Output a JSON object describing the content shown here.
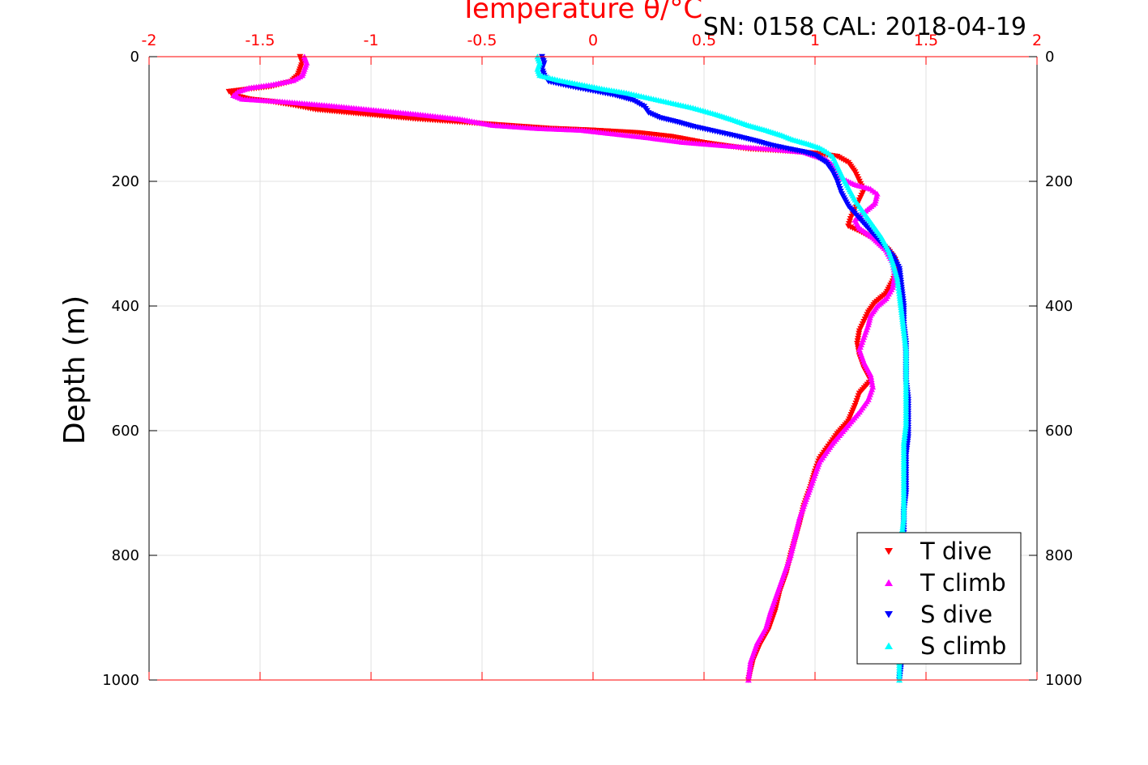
{
  "chart_data": {
    "type": "scatter",
    "title": "Temperature θ/°C",
    "annotation": "SN: 0158  CAL: 2018-04-19",
    "xlabel": "Temperature θ/°C",
    "ylabel": "Depth (m)",
    "xlim": [
      -2,
      2
    ],
    "ylim": [
      0,
      1000
    ],
    "y_reversed": true,
    "x_axis_location": "top",
    "x_ticks": [
      "-2",
      "-1.5",
      "-1",
      "-0.5",
      "0",
      "0.5",
      "1",
      "1.5",
      "2"
    ],
    "y_ticks": [
      "0",
      "200",
      "400",
      "600",
      "800",
      "1000"
    ],
    "grid": true,
    "legend_placement": "bottom-right",
    "colors": {
      "axis": "#ff0000",
      "grid": "#e0e0e0",
      "frame": "#000000"
    },
    "series": [
      {
        "name": "T dive",
        "color": "#ff0000",
        "marker": "triangle-down",
        "points": [
          [
            -1.32,
            0
          ],
          [
            -1.31,
            10
          ],
          [
            -1.32,
            20
          ],
          [
            -1.33,
            30
          ],
          [
            -1.36,
            40
          ],
          [
            -1.45,
            48
          ],
          [
            -1.55,
            52
          ],
          [
            -1.64,
            56
          ],
          [
            -1.62,
            62
          ],
          [
            -1.55,
            68
          ],
          [
            -1.45,
            72
          ],
          [
            -1.35,
            78
          ],
          [
            -1.25,
            85
          ],
          [
            -1.1,
            90
          ],
          [
            -0.95,
            95
          ],
          [
            -0.8,
            100
          ],
          [
            -0.6,
            105
          ],
          [
            -0.4,
            110
          ],
          [
            -0.2,
            115
          ],
          [
            0.0,
            118
          ],
          [
            0.2,
            122
          ],
          [
            0.35,
            128
          ],
          [
            0.5,
            138
          ],
          [
            0.7,
            148
          ],
          [
            0.9,
            152
          ],
          [
            1.0,
            155
          ],
          [
            1.1,
            160
          ],
          [
            1.15,
            170
          ],
          [
            1.18,
            185
          ],
          [
            1.2,
            200
          ],
          [
            1.22,
            215
          ],
          [
            1.2,
            230
          ],
          [
            1.18,
            245
          ],
          [
            1.16,
            260
          ],
          [
            1.15,
            272
          ],
          [
            1.2,
            280
          ],
          [
            1.28,
            295
          ],
          [
            1.33,
            310
          ],
          [
            1.36,
            325
          ],
          [
            1.37,
            340
          ],
          [
            1.35,
            360
          ],
          [
            1.32,
            380
          ],
          [
            1.27,
            395
          ],
          [
            1.24,
            410
          ],
          [
            1.22,
            425
          ],
          [
            1.2,
            440
          ],
          [
            1.19,
            460
          ],
          [
            1.2,
            480
          ],
          [
            1.22,
            500
          ],
          [
            1.25,
            520
          ],
          [
            1.2,
            540
          ],
          [
            1.18,
            560
          ],
          [
            1.15,
            585
          ],
          [
            1.1,
            605
          ],
          [
            1.06,
            625
          ],
          [
            1.02,
            645
          ],
          [
            1.0,
            665
          ],
          [
            0.98,
            690
          ],
          [
            0.95,
            720
          ],
          [
            0.93,
            750
          ],
          [
            0.91,
            775
          ],
          [
            0.89,
            800
          ],
          [
            0.87,
            830
          ],
          [
            0.84,
            860
          ],
          [
            0.82,
            890
          ],
          [
            0.79,
            920
          ],
          [
            0.75,
            945
          ],
          [
            0.72,
            970
          ],
          [
            0.7,
            1000
          ]
        ]
      },
      {
        "name": "T climb",
        "color": "#ff00ff",
        "marker": "triangle-up",
        "points": [
          [
            -1.3,
            0
          ],
          [
            -1.29,
            10
          ],
          [
            -1.3,
            20
          ],
          [
            -1.31,
            30
          ],
          [
            -1.35,
            38
          ],
          [
            -1.45,
            45
          ],
          [
            -1.55,
            50
          ],
          [
            -1.6,
            56
          ],
          [
            -1.62,
            62
          ],
          [
            -1.58,
            68
          ],
          [
            -1.4,
            72
          ],
          [
            -1.2,
            78
          ],
          [
            -1.0,
            85
          ],
          [
            -0.8,
            92
          ],
          [
            -0.6,
            100
          ],
          [
            -0.45,
            110
          ],
          [
            -0.25,
            115
          ],
          [
            -0.05,
            118
          ],
          [
            0.1,
            124
          ],
          [
            0.25,
            130
          ],
          [
            0.4,
            137
          ],
          [
            0.6,
            143
          ],
          [
            0.8,
            148
          ],
          [
            0.95,
            153
          ],
          [
            1.05,
            165
          ],
          [
            1.1,
            180
          ],
          [
            1.12,
            195
          ],
          [
            1.18,
            205
          ],
          [
            1.25,
            212
          ],
          [
            1.28,
            220
          ],
          [
            1.27,
            235
          ],
          [
            1.22,
            250
          ],
          [
            1.18,
            262
          ],
          [
            1.2,
            275
          ],
          [
            1.26,
            290
          ],
          [
            1.32,
            310
          ],
          [
            1.35,
            330
          ],
          [
            1.36,
            350
          ],
          [
            1.35,
            370
          ],
          [
            1.32,
            388
          ],
          [
            1.28,
            400
          ],
          [
            1.25,
            415
          ],
          [
            1.24,
            430
          ],
          [
            1.22,
            450
          ],
          [
            1.2,
            470
          ],
          [
            1.22,
            490
          ],
          [
            1.25,
            510
          ],
          [
            1.26,
            530
          ],
          [
            1.24,
            550
          ],
          [
            1.2,
            570
          ],
          [
            1.14,
            595
          ],
          [
            1.08,
            620
          ],
          [
            1.02,
            650
          ],
          [
            0.99,
            680
          ],
          [
            0.96,
            710
          ],
          [
            0.93,
            740
          ],
          [
            0.91,
            770
          ],
          [
            0.89,
            800
          ],
          [
            0.86,
            830
          ],
          [
            0.83,
            860
          ],
          [
            0.8,
            890
          ],
          [
            0.78,
            915
          ],
          [
            0.74,
            940
          ],
          [
            0.71,
            970
          ],
          [
            0.7,
            1000
          ]
        ]
      },
      {
        "name": "S dive",
        "color": "#0000ff",
        "marker": "triangle-down",
        "points": [
          [
            -0.23,
            0
          ],
          [
            -0.22,
            10
          ],
          [
            -0.23,
            20
          ],
          [
            -0.22,
            30
          ],
          [
            -0.2,
            40
          ],
          [
            -0.1,
            48
          ],
          [
            0.0,
            55
          ],
          [
            0.1,
            62
          ],
          [
            0.18,
            70
          ],
          [
            0.23,
            80
          ],
          [
            0.25,
            90
          ],
          [
            0.3,
            98
          ],
          [
            0.38,
            105
          ],
          [
            0.45,
            112
          ],
          [
            0.55,
            120
          ],
          [
            0.65,
            128
          ],
          [
            0.73,
            135
          ],
          [
            0.8,
            142
          ],
          [
            0.88,
            148
          ],
          [
            0.95,
            153
          ],
          [
            1.0,
            158
          ],
          [
            1.05,
            170
          ],
          [
            1.08,
            185
          ],
          [
            1.1,
            200
          ],
          [
            1.12,
            220
          ],
          [
            1.15,
            240
          ],
          [
            1.2,
            260
          ],
          [
            1.25,
            280
          ],
          [
            1.3,
            300
          ],
          [
            1.35,
            320
          ],
          [
            1.38,
            340
          ],
          [
            1.39,
            370
          ],
          [
            1.4,
            400
          ],
          [
            1.4,
            430
          ],
          [
            1.41,
            460
          ],
          [
            1.41,
            490
          ],
          [
            1.41,
            520
          ],
          [
            1.42,
            550
          ],
          [
            1.42,
            580
          ],
          [
            1.42,
            610
          ],
          [
            1.41,
            640
          ],
          [
            1.41,
            670
          ],
          [
            1.41,
            700
          ],
          [
            1.4,
            730
          ],
          [
            1.4,
            760
          ],
          [
            1.4,
            790
          ],
          [
            1.4,
            820
          ],
          [
            1.4,
            850
          ],
          [
            1.4,
            880
          ],
          [
            1.39,
            910
          ],
          [
            1.39,
            940
          ],
          [
            1.39,
            970
          ],
          [
            1.38,
            1000
          ]
        ]
      },
      {
        "name": "S climb",
        "color": "#00ffff",
        "marker": "triangle-up",
        "points": [
          [
            -0.25,
            0
          ],
          [
            -0.24,
            10
          ],
          [
            -0.25,
            20
          ],
          [
            -0.24,
            30
          ],
          [
            -0.15,
            38
          ],
          [
            -0.05,
            45
          ],
          [
            0.05,
            52
          ],
          [
            0.15,
            58
          ],
          [
            0.25,
            66
          ],
          [
            0.35,
            74
          ],
          [
            0.45,
            82
          ],
          [
            0.55,
            92
          ],
          [
            0.62,
            100
          ],
          [
            0.7,
            110
          ],
          [
            0.78,
            118
          ],
          [
            0.85,
            126
          ],
          [
            0.9,
            133
          ],
          [
            0.97,
            140
          ],
          [
            1.02,
            146
          ],
          [
            1.05,
            152
          ],
          [
            1.08,
            160
          ],
          [
            1.1,
            175
          ],
          [
            1.12,
            190
          ],
          [
            1.15,
            210
          ],
          [
            1.18,
            230
          ],
          [
            1.22,
            250
          ],
          [
            1.26,
            270
          ],
          [
            1.3,
            290
          ],
          [
            1.33,
            310
          ],
          [
            1.35,
            330
          ],
          [
            1.37,
            355
          ],
          [
            1.38,
            380
          ],
          [
            1.39,
            410
          ],
          [
            1.4,
            440
          ],
          [
            1.41,
            470
          ],
          [
            1.41,
            500
          ],
          [
            1.41,
            530
          ],
          [
            1.41,
            560
          ],
          [
            1.41,
            590
          ],
          [
            1.4,
            620
          ],
          [
            1.4,
            650
          ],
          [
            1.4,
            680
          ],
          [
            1.4,
            710
          ],
          [
            1.4,
            740
          ],
          [
            1.39,
            770
          ],
          [
            1.39,
            800
          ],
          [
            1.39,
            830
          ],
          [
            1.39,
            860
          ],
          [
            1.39,
            890
          ],
          [
            1.38,
            920
          ],
          [
            1.38,
            950
          ],
          [
            1.38,
            980
          ],
          [
            1.38,
            1000
          ]
        ]
      }
    ]
  }
}
